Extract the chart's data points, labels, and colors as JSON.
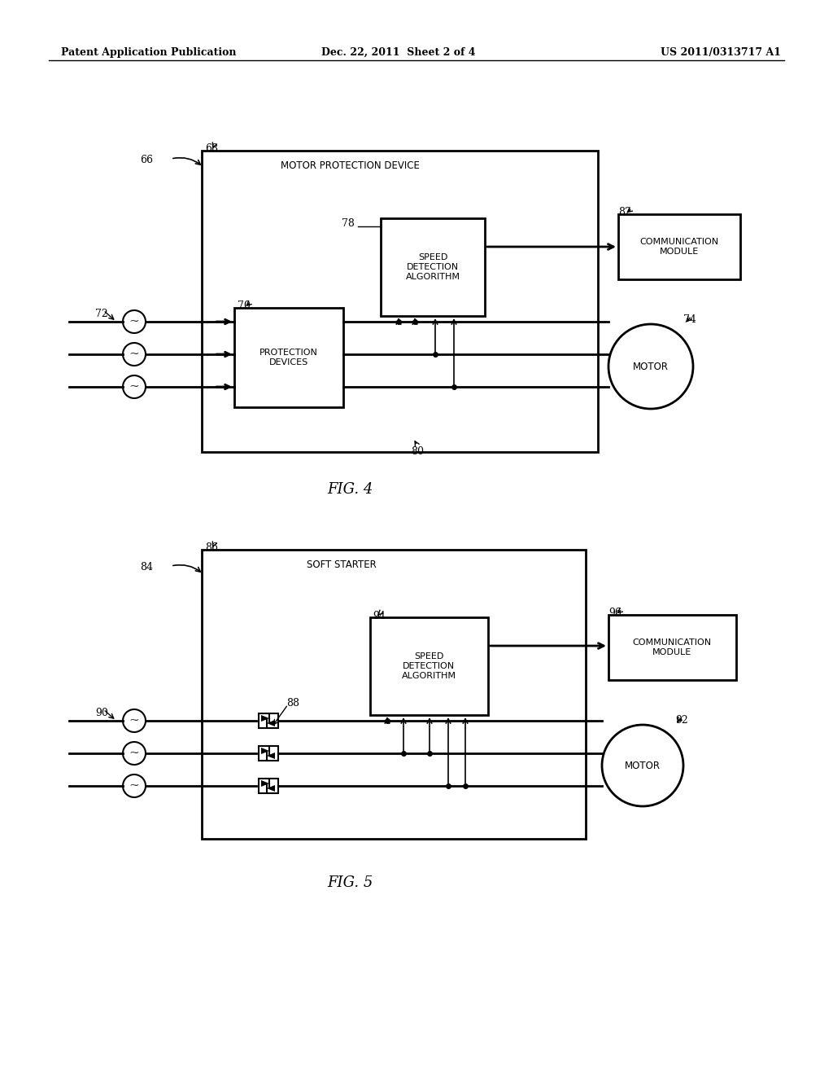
{
  "bg_color": "#ffffff",
  "header_left": "Patent Application Publication",
  "header_mid": "Dec. 22, 2011  Sheet 2 of 4",
  "header_right": "US 2011/0313717 A1",
  "fig4_label": "FIG. 4",
  "fig5_label": "FIG. 5",
  "fig4": {
    "outer_box_label": "68",
    "outer_box_text": "MOTOR PROTECTION DEVICE",
    "ref66": "66",
    "ref72": "72",
    "ref70": "70",
    "protection_text": "PROTECTION\nDEVICES",
    "ref78": "78",
    "speed_text": "SPEED\nDETECTION\nALGORITHM",
    "ref80": "80",
    "ref74": "74",
    "motor_text": "MOTOR",
    "ref82": "82",
    "comm_text": "COMMUNICATION\nMODULE"
  },
  "fig5": {
    "outer_box_label": "86",
    "outer_box_text": "SOFT STARTER",
    "ref84": "84",
    "ref90": "90",
    "ref88": "88",
    "ref94": "94",
    "speed_text": "SPEED\nDETECTION\nALGORITHM",
    "ref92": "92",
    "motor_text": "MOTOR",
    "ref96": "96",
    "comm_text": "COMMUNICATION\nMODULE"
  }
}
